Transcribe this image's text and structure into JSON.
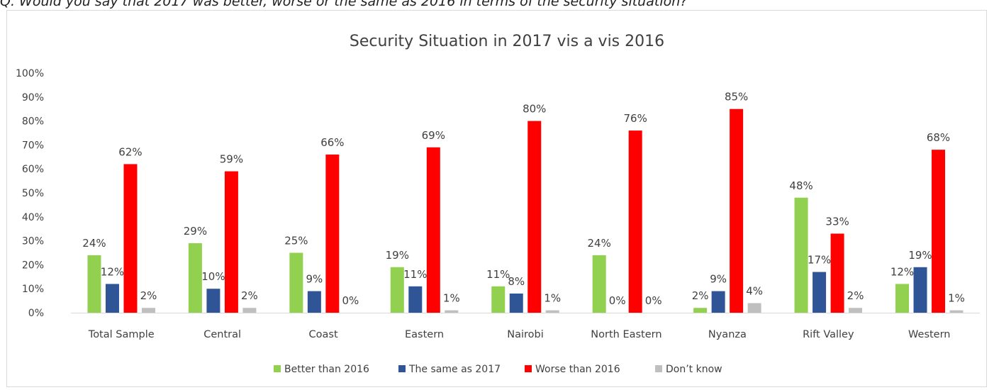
{
  "question": "Q. Would you say that 2017 was better, worse or the same as 2016 in terms of the security situation?",
  "chart_data": {
    "type": "bar",
    "title": "Security Situation in 2017 vis a vis 2016",
    "xlabel": "",
    "ylabel": "",
    "ylim": [
      0,
      100
    ],
    "yticks": [
      "0%",
      "10%",
      "20%",
      "30%",
      "40%",
      "50%",
      "60%",
      "70%",
      "80%",
      "90%",
      "100%"
    ],
    "grid": false,
    "legend_position": "bottom",
    "categories": [
      "Total Sample",
      "Central",
      "Coast",
      "Eastern",
      "Nairobi",
      "North Eastern",
      "Nyanza",
      "Rift Valley",
      "Western"
    ],
    "series": [
      {
        "name": "Better than 2016",
        "color": "#92d050",
        "values": [
          24,
          29,
          25,
          19,
          11,
          24,
          2,
          48,
          12
        ],
        "labels": [
          "24%",
          "29%",
          "25%",
          "19%",
          "11%",
          "24%",
          "2%",
          "48%",
          "12%"
        ]
      },
      {
        "name": "The same as 2017",
        "color": "#2f5597",
        "values": [
          12,
          10,
          9,
          11,
          8,
          0,
          9,
          17,
          19
        ],
        "labels": [
          "12%",
          "10%",
          "9%",
          "11%",
          "8%",
          "0%",
          "9%",
          "17%",
          "19%"
        ]
      },
      {
        "name": "Worse than 2016",
        "color": "#ff0000",
        "values": [
          62,
          59,
          66,
          69,
          80,
          76,
          85,
          33,
          68
        ],
        "labels": [
          "62%",
          "59%",
          "66%",
          "69%",
          "80%",
          "76%",
          "85%",
          "33%",
          "68%"
        ]
      },
      {
        "name": "Don’t know",
        "color": "#bfbfbf",
        "values": [
          2,
          2,
          0,
          1,
          1,
          0,
          4,
          2,
          1
        ],
        "labels": [
          "2%",
          "2%",
          "0%",
          "1%",
          "1%",
          "0%",
          "4%",
          "2%",
          "1%"
        ]
      }
    ]
  }
}
